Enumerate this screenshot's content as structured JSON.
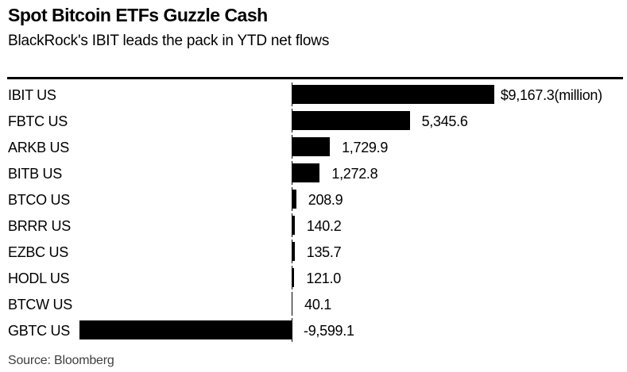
{
  "header": {
    "title": "Spot Bitcoin ETFs Guzzle Cash",
    "subtitle": "BlackRock's IBIT leads the pack in YTD net flows"
  },
  "footer": {
    "source": "Source: Bloomberg"
  },
  "colors": {
    "background": "#ffffff",
    "bar": "#000000",
    "text": "#000000",
    "rule": "#000000",
    "source_text": "#3f3f3f"
  },
  "chart_data": {
    "type": "bar",
    "orientation": "horizontal",
    "title": "Spot Bitcoin ETFs Guzzle Cash",
    "subtitle": "BlackRock's IBIT leads the pack in YTD net flows",
    "unit": "million USD",
    "categories": [
      "IBIT US",
      "FBTC US",
      "ARKB US",
      "BITB US",
      "BTCO US",
      "BRRR US",
      "EZBC US",
      "HODL US",
      "BTCW US",
      "GBTC US"
    ],
    "values": [
      9167.3,
      5345.6,
      1729.9,
      1272.8,
      208.9,
      140.2,
      135.7,
      121.0,
      40.1,
      -9599.1
    ],
    "value_labels": [
      "$9,167.3(million)",
      "5,345.6",
      "1,729.9",
      "1,272.8",
      "208.9",
      "140.2",
      "135.7",
      "121.0",
      "40.1",
      "-9,599.1"
    ],
    "xlabel": "",
    "ylabel": "",
    "xlim": [
      -9599.1,
      9167.3
    ],
    "grid": false,
    "legend": false,
    "zero_baseline": true,
    "bar_color": "#000000",
    "source": "Source: Bloomberg"
  }
}
